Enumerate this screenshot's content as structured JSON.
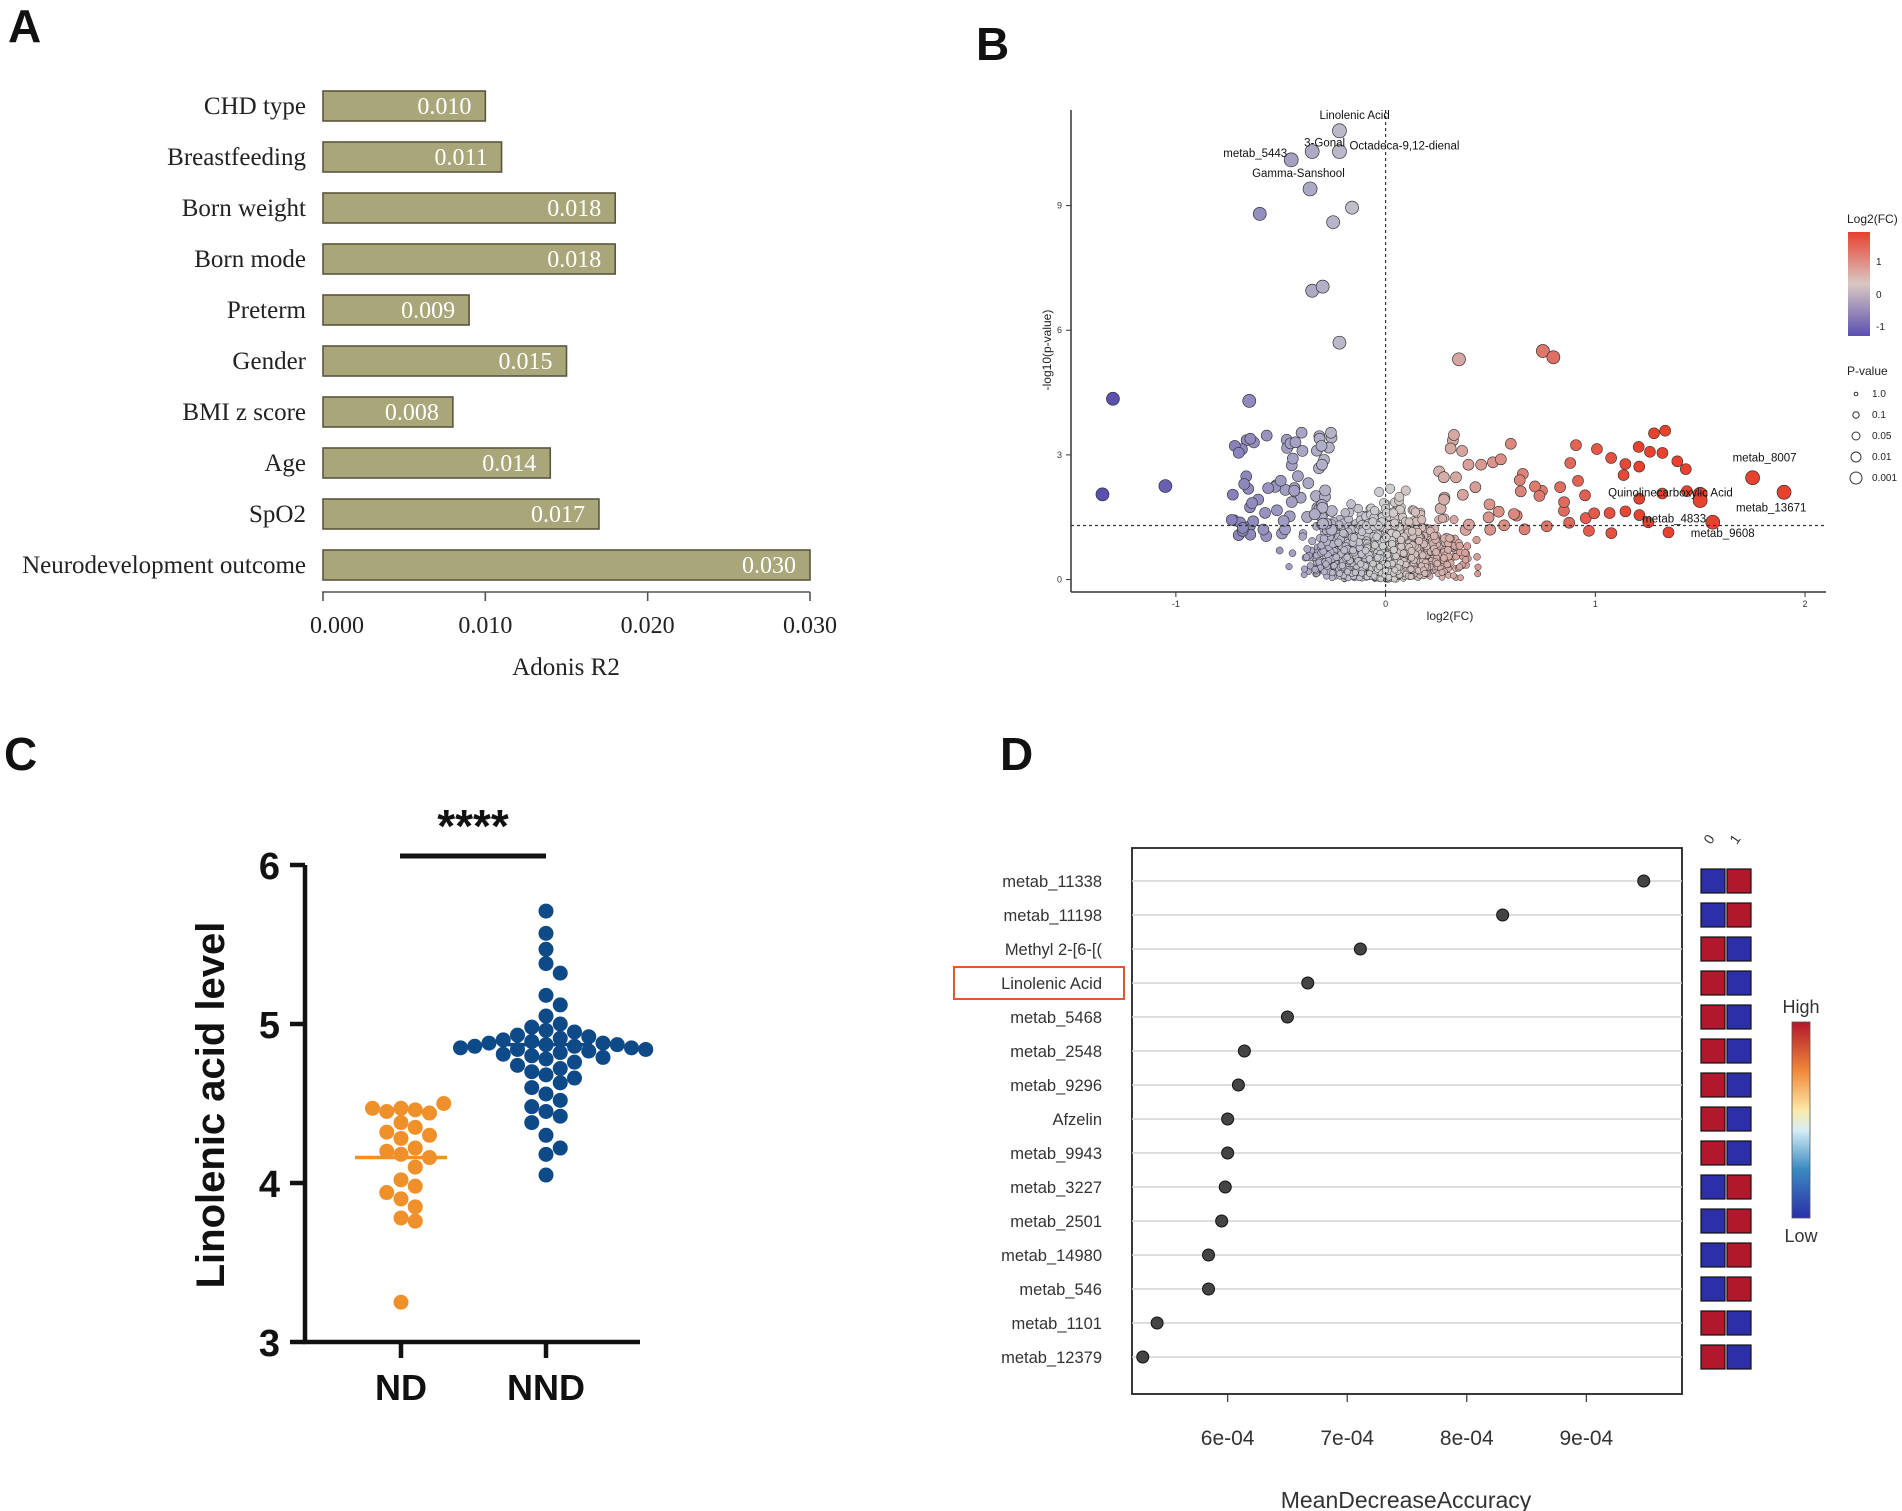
{
  "colors": {
    "bar_fill": "#a9a67a",
    "bar_stroke": "#5a573d",
    "volcano_up": "#e8412e",
    "volcano_down": "#5b4fb0",
    "volcano_mid": "#cfcfcf",
    "nd": "#f0902a",
    "nnd": "#0e4a87",
    "lollipop": "#444444",
    "heat_high": "#b2182b",
    "heat_low": "#2c2fa8",
    "highlight_box": "#e05a2a"
  },
  "chart_data": [
    {
      "panel": "A",
      "type": "bar",
      "orientation": "horizontal",
      "categories": [
        "CHD type",
        "Breastfeeding",
        "Born weight",
        "Born mode",
        "Preterm",
        "Gender",
        "BMI z score",
        "Age",
        "SpO2",
        "Neurodevelopment outcome"
      ],
      "values": [
        0.01,
        0.011,
        0.018,
        0.018,
        0.009,
        0.015,
        0.008,
        0.014,
        0.017,
        0.03
      ],
      "value_labels": [
        "0.010",
        "0.011",
        "0.018",
        "0.018",
        "0.009",
        "0.015",
        "0.008",
        "0.014",
        "0.017",
        "0.030"
      ],
      "xlabel": "Adonis R2",
      "xlim": [
        0,
        0.03
      ],
      "xticks": [
        0,
        0.01,
        0.02,
        0.03
      ],
      "xtick_labels": [
        "0.000",
        "0.010",
        "0.020",
        "0.030"
      ]
    },
    {
      "panel": "B",
      "type": "scatter",
      "subtype": "volcano",
      "xlabel": "log2(FC)",
      "ylabel": "-log10(p-value)",
      "xlim": [
        -1.5,
        2.1
      ],
      "ylim": [
        -0.3,
        11.3
      ],
      "xticks": [
        -1,
        0,
        1,
        2
      ],
      "xtick_labels": [
        "-1",
        "0",
        "1",
        "2"
      ],
      "yticks": [
        0,
        3,
        6,
        9
      ],
      "ytick_labels": [
        "0",
        "3",
        "6",
        "9"
      ],
      "threshold_y": 1.3,
      "threshold_x": 0,
      "labeled_points": [
        {
          "name": "Linolenic Acid",
          "x": -0.22,
          "y": 10.8
        },
        {
          "name": "3-Gonal",
          "x": -0.35,
          "y": 10.3
        },
        {
          "name": "metab_5443",
          "x": -0.45,
          "y": 10.1
        },
        {
          "name": "Octadeca-9,12-dienal",
          "x": -0.22,
          "y": 10.3
        },
        {
          "name": "Gamma-Sanshool",
          "x": -0.36,
          "y": 9.4
        },
        {
          "name": "metab_8007",
          "x": 1.75,
          "y": 2.45
        },
        {
          "name": "Quinolinecarboxylic Acid",
          "x": 1.5,
          "y": 2.05
        },
        {
          "name": "metab_13671",
          "x": 1.9,
          "y": 2.1
        },
        {
          "name": "metab_4833",
          "x": 1.5,
          "y": 1.9
        },
        {
          "name": "metab_9608",
          "x": 1.56,
          "y": 1.38
        }
      ],
      "extra_points": [
        {
          "x": -0.6,
          "y": 8.8
        },
        {
          "x": -0.25,
          "y": 8.6
        },
        {
          "x": -0.16,
          "y": 8.95
        },
        {
          "x": -0.35,
          "y": 6.95
        },
        {
          "x": -0.3,
          "y": 7.05
        },
        {
          "x": -0.22,
          "y": 5.7
        },
        {
          "x": 0.35,
          "y": 5.3
        },
        {
          "x": 0.75,
          "y": 5.5
        },
        {
          "x": 0.8,
          "y": 5.35
        },
        {
          "x": -1.3,
          "y": 4.35
        },
        {
          "x": -0.65,
          "y": 4.3
        },
        {
          "x": -1.05,
          "y": 2.25
        },
        {
          "x": -1.35,
          "y": 2.05
        }
      ],
      "legend": {
        "color_title": "Log2(FC)",
        "color_ticks": [
          "1",
          "0",
          "-1"
        ],
        "size_title": "P-value",
        "size_labels": [
          "1.0",
          "0.1",
          "0.05",
          "0.01",
          "0.001"
        ]
      }
    },
    {
      "panel": "C",
      "type": "scatter",
      "subtype": "dot-strip",
      "ylabel": "Linolenic acid level",
      "ylim": [
        3,
        6
      ],
      "yticks": [
        3,
        4,
        5,
        6
      ],
      "ytick_labels": [
        "3",
        "4",
        "5",
        "6"
      ],
      "categories": [
        "ND",
        "NND"
      ],
      "significance": "****",
      "series": [
        {
          "name": "ND",
          "median": 4.16,
          "values": [
            4.47,
            4.46,
            4.45,
            4.44,
            4.47,
            4.5,
            4.38,
            4.35,
            4.32,
            4.3,
            4.28,
            4.22,
            4.2,
            4.18,
            4.16,
            4.1,
            4.02,
            3.98,
            3.94,
            3.9,
            3.85,
            3.78,
            3.76,
            3.25
          ]
        },
        {
          "name": "NND",
          "median": 4.87,
          "values": [
            5.71,
            5.57,
            5.47,
            5.38,
            5.32,
            5.18,
            5.12,
            5.05,
            5.0,
            4.98,
            4.96,
            4.95,
            4.93,
            4.92,
            4.91,
            4.9,
            4.89,
            4.88,
            4.88,
            4.87,
            4.87,
            4.86,
            4.86,
            4.85,
            4.85,
            4.84,
            4.84,
            4.83,
            4.82,
            4.81,
            4.8,
            4.79,
            4.78,
            4.76,
            4.74,
            4.72,
            4.7,
            4.68,
            4.66,
            4.63,
            4.6,
            4.56,
            4.52,
            4.48,
            4.45,
            4.42,
            4.38,
            4.3,
            4.22,
            4.18,
            4.05
          ]
        }
      ]
    },
    {
      "panel": "D",
      "type": "scatter",
      "subtype": "lollipop-with-heatmap",
      "xlabel": "MeanDecreaseAccuracy",
      "xlim": [
        0.00052,
        0.00098
      ],
      "xticks": [
        0.0006,
        0.0007,
        0.0008,
        0.0009
      ],
      "xtick_labels": [
        "6e-04",
        "7e-04",
        "8e-04",
        "9e-04"
      ],
      "categories": [
        "metab_11338",
        "metab_11198",
        "Methyl 2-[6-[(",
        "Linolenic Acid",
        "metab_5468",
        "metab_2548",
        "metab_9296",
        "Afzelin",
        "metab_9943",
        "metab_3227",
        "metab_2501",
        "metab_14980",
        "metab_546",
        "metab_1101",
        "metab_12379"
      ],
      "values": [
        0.000948,
        0.00083,
        0.000711,
        0.000667,
        0.00065,
        0.000614,
        0.000609,
        0.0006,
        0.0006,
        0.000598,
        0.000595,
        0.000584,
        0.000584,
        0.000541,
        0.000529
      ],
      "highlighted": "Linolenic Acid",
      "heatmap_columns": [
        "0",
        "1"
      ],
      "heatmap": [
        [
          "low",
          "high"
        ],
        [
          "low",
          "high"
        ],
        [
          "high",
          "low"
        ],
        [
          "high",
          "low"
        ],
        [
          "high",
          "low"
        ],
        [
          "high",
          "low"
        ],
        [
          "high",
          "low"
        ],
        [
          "high",
          "low"
        ],
        [
          "high",
          "low"
        ],
        [
          "low",
          "high"
        ],
        [
          "low",
          "high"
        ],
        [
          "low",
          "high"
        ],
        [
          "low",
          "high"
        ],
        [
          "high",
          "low"
        ],
        [
          "high",
          "low"
        ]
      ],
      "legend": {
        "high_label": "High",
        "low_label": "Low"
      }
    }
  ],
  "panels": {
    "a": "A",
    "b": "B",
    "c": "C",
    "d": "D"
  }
}
